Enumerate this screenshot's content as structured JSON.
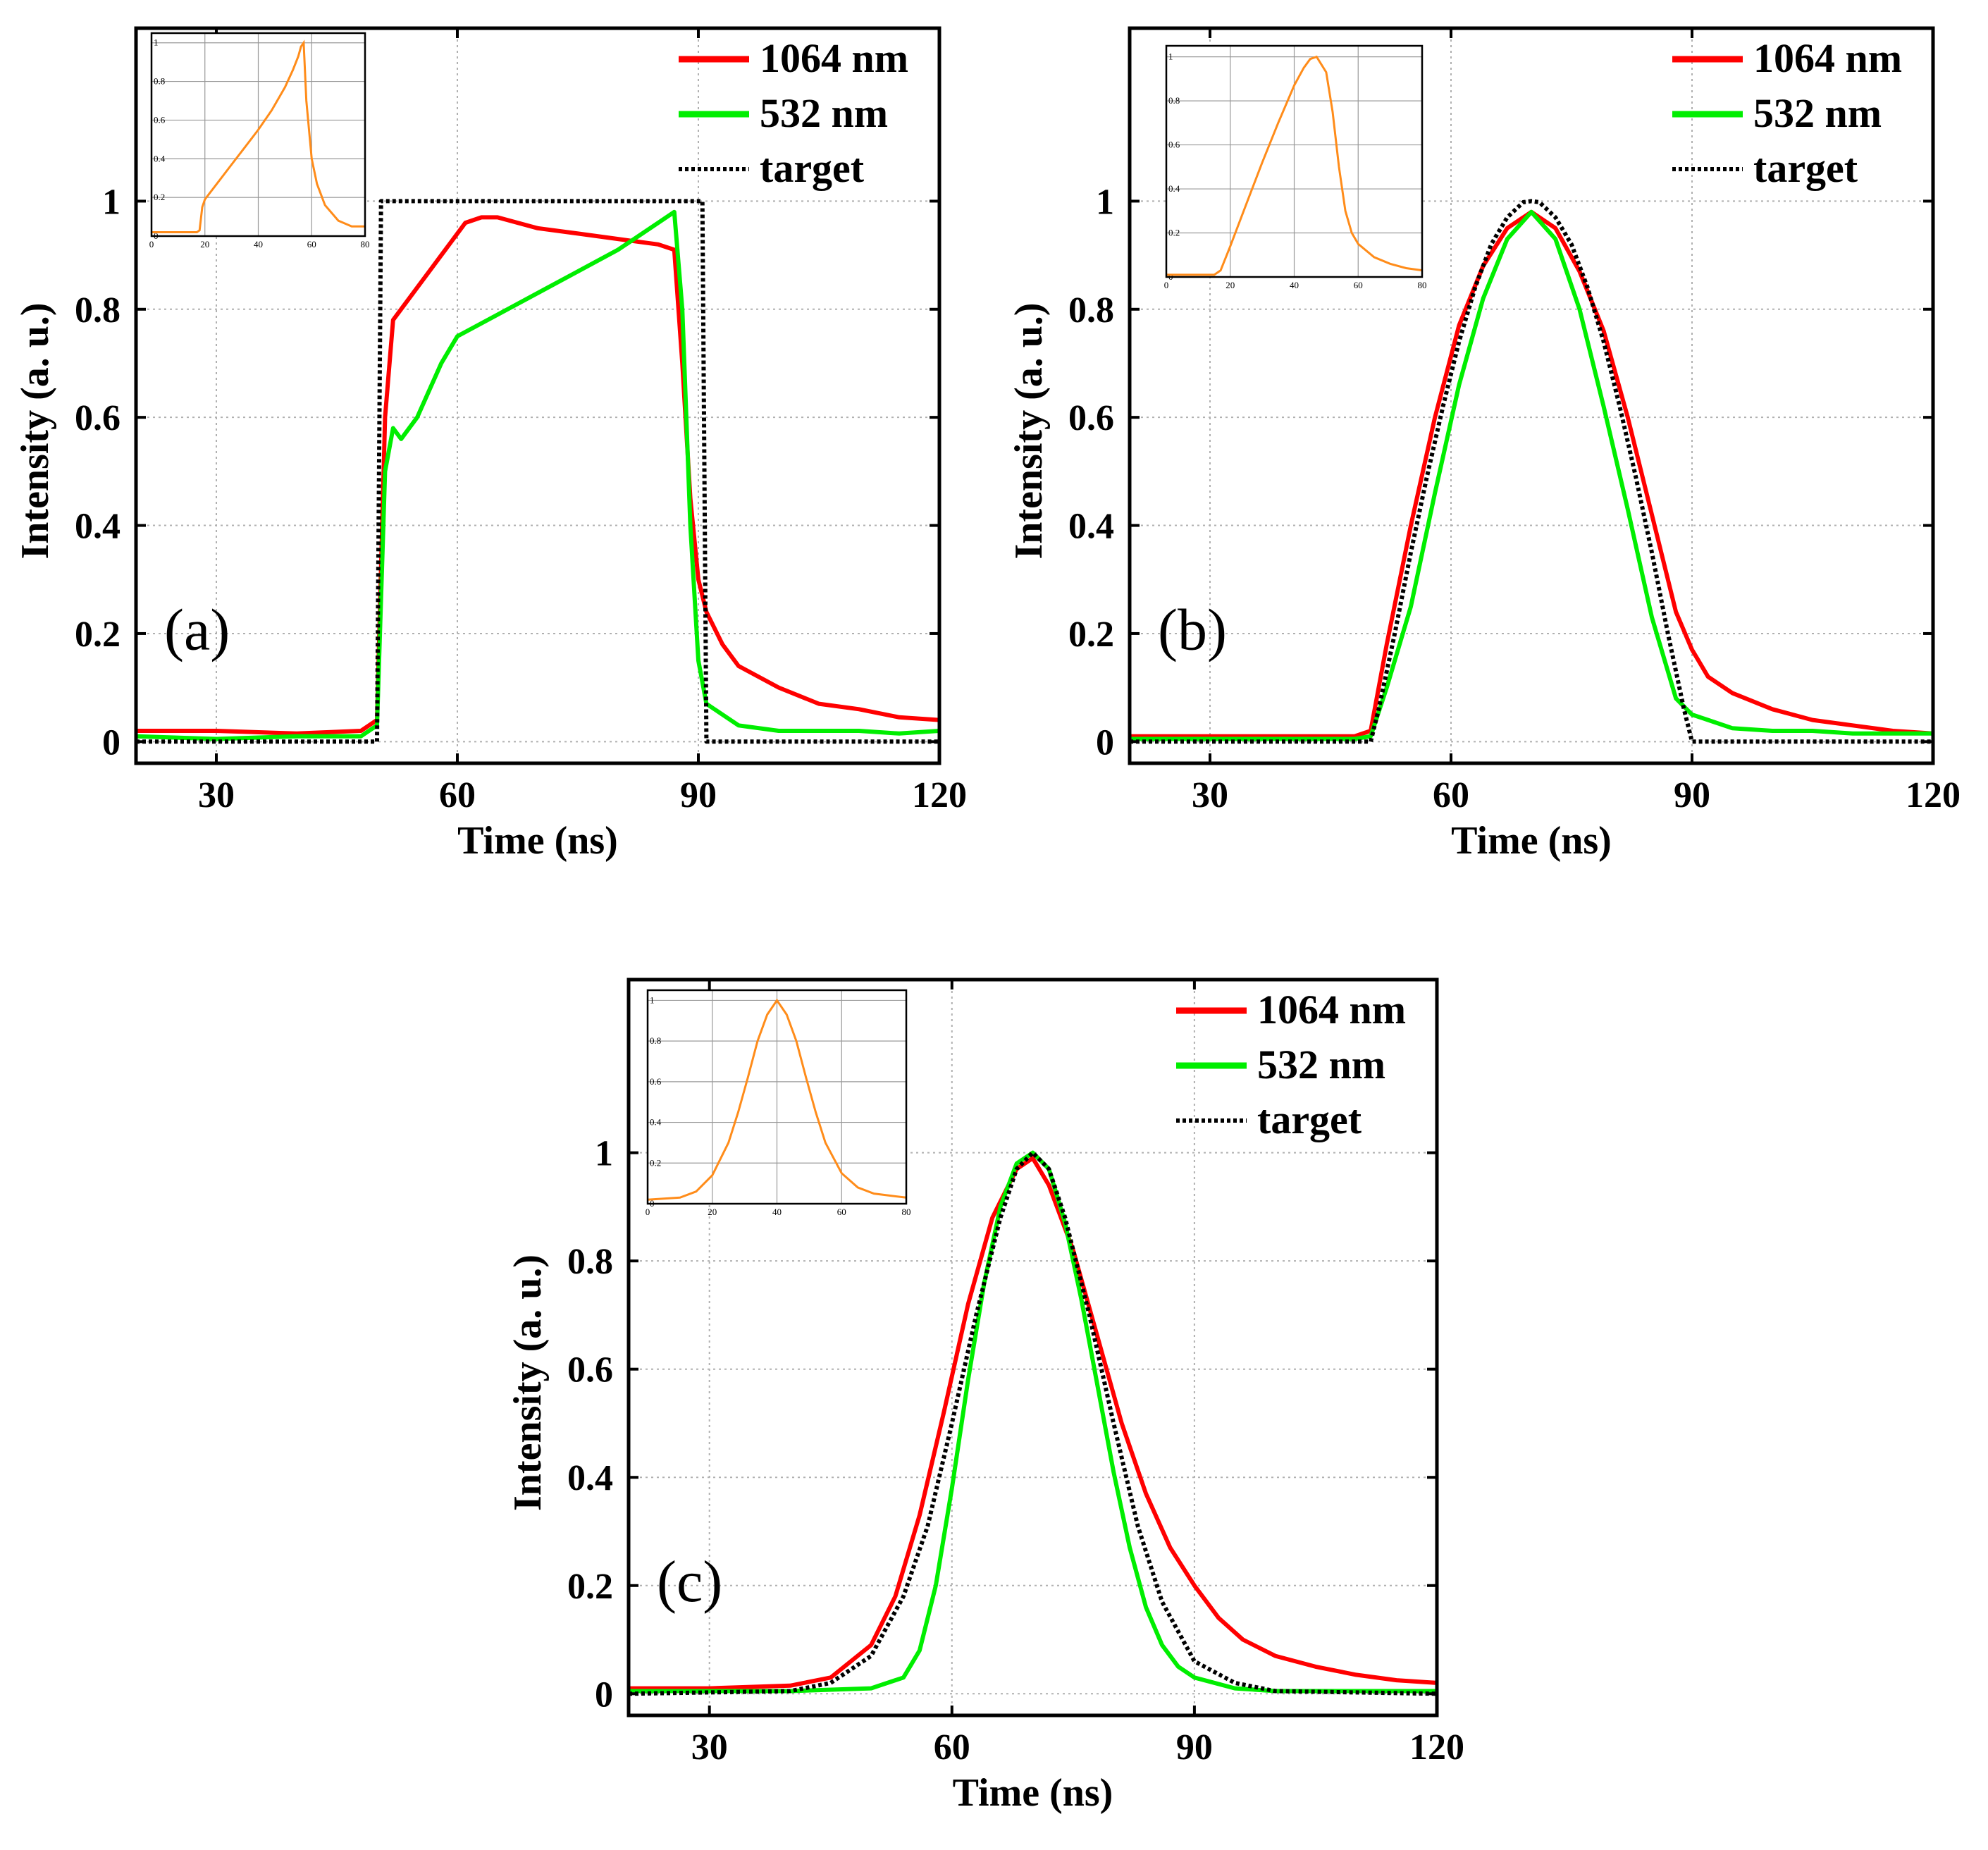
{
  "chart_data": [
    {
      "type": "line",
      "panel_label": "(a)",
      "xlabel": "Time (ns)",
      "ylabel": "Intensity (a. u.)",
      "xlim": [
        20,
        120
      ],
      "ylim": [
        -0.04,
        1.32
      ],
      "xticks": [
        30,
        60,
        90,
        120
      ],
      "yticks": [
        0,
        0.2,
        0.4,
        0.6,
        0.8,
        1
      ],
      "xtick_labels": [
        "30",
        "60",
        "90",
        "120"
      ],
      "ytick_labels": [
        "0",
        "0.2",
        "0.4",
        "0.6",
        "0.8",
        "1"
      ],
      "grid": true,
      "legend_position": "top-right",
      "series": [
        {
          "name": "1064 nm",
          "color": "#ff0000",
          "style": "solid",
          "x": [
            20,
            30,
            40,
            48,
            50,
            51,
            52,
            55,
            58,
            61,
            63,
            65,
            70,
            75,
            80,
            85,
            87,
            88,
            89,
            90,
            91,
            93,
            95,
            100,
            105,
            110,
            115,
            120
          ],
          "y": [
            0.02,
            0.02,
            0.015,
            0.02,
            0.04,
            0.6,
            0.78,
            0.84,
            0.9,
            0.96,
            0.97,
            0.97,
            0.95,
            0.94,
            0.93,
            0.92,
            0.91,
            0.7,
            0.45,
            0.3,
            0.24,
            0.18,
            0.14,
            0.1,
            0.07,
            0.06,
            0.045,
            0.04
          ]
        },
        {
          "name": "532 nm",
          "color": "#00ee00",
          "style": "solid",
          "x": [
            20,
            30,
            40,
            48,
            50,
            51,
            52,
            53,
            55,
            58,
            60,
            65,
            70,
            75,
            80,
            85,
            87,
            88,
            89,
            90,
            91,
            95,
            100,
            105,
            110,
            115,
            120
          ],
          "y": [
            0.01,
            0.005,
            0.01,
            0.01,
            0.03,
            0.5,
            0.58,
            0.56,
            0.6,
            0.7,
            0.75,
            0.79,
            0.83,
            0.87,
            0.91,
            0.96,
            0.98,
            0.8,
            0.4,
            0.15,
            0.07,
            0.03,
            0.02,
            0.02,
            0.02,
            0.015,
            0.02
          ]
        },
        {
          "name": "target",
          "color": "#000000",
          "style": "dotted",
          "x": [
            20,
            50,
            50.5,
            90.5,
            91,
            120
          ],
          "y": [
            0,
            0,
            1,
            1,
            0,
            0
          ]
        }
      ],
      "inset": {
        "xlim": [
          0,
          80
        ],
        "ylim": [
          0,
          1.05
        ],
        "xticks": [
          0,
          20,
          40,
          60,
          80
        ],
        "yticks": [
          0,
          0.2,
          0.4,
          0.6,
          0.8,
          1
        ],
        "xtick_labels": [
          "0",
          "20",
          "40",
          "60",
          "80"
        ],
        "ytick_labels": [
          "0",
          "0.2",
          "0.4",
          "0.6",
          "0.8",
          "1"
        ],
        "color": "#ff8c1a",
        "x": [
          0,
          10,
          17,
          18,
          19,
          20,
          25,
          30,
          35,
          40,
          45,
          50,
          53,
          55,
          56,
          57,
          58,
          60,
          62,
          65,
          70,
          75,
          80
        ],
        "y": [
          0.02,
          0.02,
          0.02,
          0.03,
          0.15,
          0.19,
          0.28,
          0.37,
          0.46,
          0.55,
          0.65,
          0.77,
          0.86,
          0.93,
          0.98,
          1.0,
          0.7,
          0.4,
          0.27,
          0.16,
          0.08,
          0.05,
          0.05
        ]
      }
    },
    {
      "type": "line",
      "panel_label": "(b)",
      "xlabel": "Time (ns)",
      "ylabel": "Intensity (a. u.)",
      "xlim": [
        20,
        120
      ],
      "ylim": [
        -0.04,
        1.32
      ],
      "xticks": [
        30,
        60,
        90,
        120
      ],
      "yticks": [
        0,
        0.2,
        0.4,
        0.6,
        0.8,
        1
      ],
      "xtick_labels": [
        "30",
        "60",
        "90",
        "120"
      ],
      "ytick_labels": [
        "0",
        "0.2",
        "0.4",
        "0.6",
        "0.8",
        "1"
      ],
      "grid": true,
      "legend_position": "top-right",
      "series": [
        {
          "name": "1064 nm",
          "color": "#ff0000",
          "style": "solid",
          "x": [
            20,
            30,
            40,
            48,
            50,
            52,
            55,
            58,
            61,
            64,
            67,
            70,
            73,
            76,
            79,
            82,
            85,
            88,
            90,
            92,
            95,
            100,
            105,
            110,
            115,
            120
          ],
          "y": [
            0.01,
            0.01,
            0.01,
            0.01,
            0.02,
            0.18,
            0.4,
            0.6,
            0.77,
            0.88,
            0.95,
            0.98,
            0.95,
            0.87,
            0.76,
            0.6,
            0.42,
            0.24,
            0.17,
            0.12,
            0.09,
            0.06,
            0.04,
            0.03,
            0.02,
            0.015
          ]
        },
        {
          "name": "532 nm",
          "color": "#00ee00",
          "style": "solid",
          "x": [
            20,
            30,
            40,
            48,
            50,
            52,
            55,
            58,
            61,
            64,
            67,
            70,
            73,
            76,
            79,
            82,
            85,
            88,
            90,
            92,
            95,
            100,
            105,
            110,
            115,
            120
          ],
          "y": [
            0.005,
            0.005,
            0.005,
            0.005,
            0.01,
            0.1,
            0.25,
            0.46,
            0.66,
            0.82,
            0.93,
            0.98,
            0.93,
            0.8,
            0.62,
            0.43,
            0.23,
            0.08,
            0.05,
            0.04,
            0.025,
            0.02,
            0.02,
            0.015,
            0.015,
            0.015
          ]
        },
        {
          "name": "target",
          "color": "#000000",
          "style": "dotted",
          "x": [
            20,
            50,
            51,
            53,
            55,
            57,
            59,
            61,
            63,
            65,
            67,
            69,
            70,
            71,
            73,
            75,
            77,
            79,
            81,
            83,
            85,
            87,
            89,
            90,
            91,
            120
          ],
          "y": [
            0,
            0,
            0.06,
            0.2,
            0.35,
            0.49,
            0.62,
            0.74,
            0.84,
            0.92,
            0.97,
            0.998,
            1.0,
            0.998,
            0.97,
            0.92,
            0.84,
            0.74,
            0.62,
            0.49,
            0.35,
            0.2,
            0.06,
            0,
            0,
            0
          ]
        }
      ],
      "inset": {
        "xlim": [
          0,
          80
        ],
        "ylim": [
          0,
          1.05
        ],
        "xticks": [
          0,
          20,
          40,
          60,
          80
        ],
        "yticks": [
          0,
          0.2,
          0.4,
          0.6,
          0.8,
          1
        ],
        "xtick_labels": [
          "0",
          "20",
          "40",
          "60",
          "80"
        ],
        "ytick_labels": [
          "0",
          "0.2",
          "0.4",
          "0.6",
          "0.8",
          "1"
        ],
        "color": "#ff8c1a",
        "x": [
          0,
          10,
          15,
          17,
          20,
          25,
          30,
          35,
          40,
          43,
          45,
          47,
          50,
          52,
          54,
          56,
          58,
          60,
          65,
          70,
          75,
          80
        ],
        "y": [
          0.01,
          0.01,
          0.01,
          0.03,
          0.14,
          0.33,
          0.52,
          0.7,
          0.87,
          0.95,
          0.99,
          1.0,
          0.93,
          0.75,
          0.5,
          0.3,
          0.2,
          0.15,
          0.09,
          0.06,
          0.04,
          0.03
        ]
      }
    },
    {
      "type": "line",
      "panel_label": "(c)",
      "xlabel": "Time (ns)",
      "ylabel": "Intensity (a. u.)",
      "xlim": [
        20,
        120
      ],
      "ylim": [
        -0.04,
        1.32
      ],
      "xticks": [
        30,
        60,
        90,
        120
      ],
      "yticks": [
        0,
        0.2,
        0.4,
        0.6,
        0.8,
        1
      ],
      "xtick_labels": [
        "30",
        "60",
        "90",
        "120"
      ],
      "ytick_labels": [
        "0",
        "0.2",
        "0.4",
        "0.6",
        "0.8",
        "1"
      ],
      "grid": true,
      "legend_position": "top-right",
      "series": [
        {
          "name": "1064 nm",
          "color": "#ff0000",
          "style": "solid",
          "x": [
            20,
            30,
            40,
            45,
            50,
            53,
            56,
            59,
            62,
            65,
            68,
            70,
            72,
            75,
            78,
            81,
            84,
            87,
            90,
            93,
            96,
            100,
            105,
            110,
            115,
            120
          ],
          "y": [
            0.01,
            0.01,
            0.015,
            0.03,
            0.09,
            0.18,
            0.33,
            0.52,
            0.72,
            0.88,
            0.97,
            0.99,
            0.94,
            0.82,
            0.66,
            0.5,
            0.37,
            0.27,
            0.2,
            0.14,
            0.1,
            0.07,
            0.05,
            0.035,
            0.025,
            0.02
          ]
        },
        {
          "name": "532 nm",
          "color": "#00ee00",
          "style": "solid",
          "x": [
            20,
            30,
            40,
            50,
            54,
            56,
            58,
            60,
            62,
            64,
            66,
            68,
            70,
            72,
            74,
            76,
            78,
            80,
            82,
            84,
            86,
            88,
            90,
            95,
            100,
            110,
            120
          ],
          "y": [
            0.005,
            0.005,
            0.005,
            0.01,
            0.03,
            0.08,
            0.2,
            0.38,
            0.58,
            0.76,
            0.9,
            0.98,
            1.0,
            0.97,
            0.87,
            0.73,
            0.57,
            0.41,
            0.27,
            0.16,
            0.09,
            0.05,
            0.03,
            0.01,
            0.005,
            0.005,
            0.005
          ]
        },
        {
          "name": "target",
          "color": "#000000",
          "style": "dotted",
          "x": [
            20,
            40,
            45,
            50,
            54,
            57,
            60,
            63,
            66,
            68,
            70,
            72,
            74,
            77,
            80,
            83,
            86,
            90,
            95,
            100,
            120
          ],
          "y": [
            0,
            0.005,
            0.02,
            0.07,
            0.18,
            0.31,
            0.5,
            0.7,
            0.88,
            0.97,
            1.0,
            0.97,
            0.88,
            0.7,
            0.5,
            0.31,
            0.17,
            0.06,
            0.02,
            0.005,
            0
          ]
        }
      ],
      "inset": {
        "xlim": [
          0,
          80
        ],
        "ylim": [
          0,
          1.05
        ],
        "xticks": [
          0,
          20,
          40,
          60,
          80
        ],
        "yticks": [
          0,
          0.2,
          0.4,
          0.6,
          0.8,
          1
        ],
        "xtick_labels": [
          "0",
          "20",
          "40",
          "60",
          "80"
        ],
        "ytick_labels": [
          "0",
          "0.2",
          "0.4",
          "0.6",
          "0.8",
          "1"
        ],
        "color": "#ff8c1a",
        "x": [
          0,
          10,
          15,
          20,
          25,
          28,
          31,
          34,
          37,
          40,
          43,
          46,
          49,
          52,
          55,
          60,
          65,
          70,
          75,
          80
        ],
        "y": [
          0.02,
          0.03,
          0.06,
          0.14,
          0.3,
          0.45,
          0.62,
          0.8,
          0.93,
          1.0,
          0.93,
          0.8,
          0.62,
          0.45,
          0.3,
          0.15,
          0.08,
          0.05,
          0.04,
          0.03
        ]
      }
    }
  ]
}
